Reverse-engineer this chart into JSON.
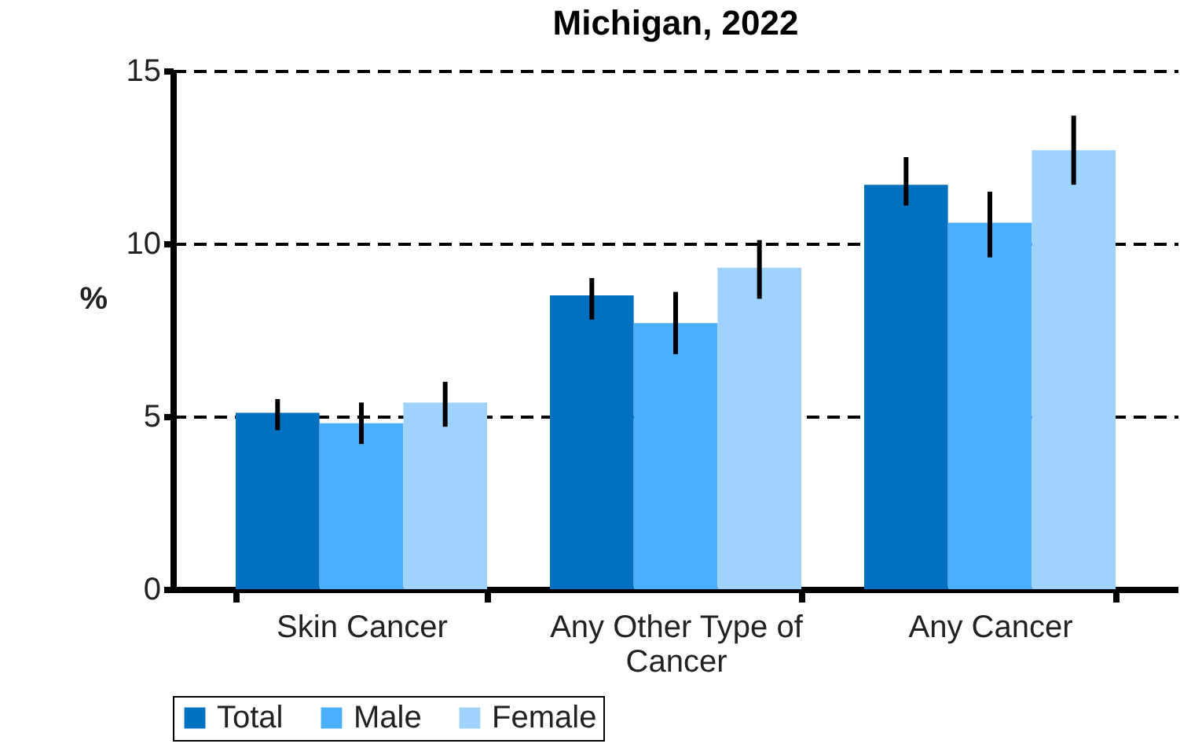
{
  "chart_data": {
    "type": "bar",
    "title": "Michigan, 2022",
    "ylabel": "%",
    "categories": [
      "Skin Cancer",
      "Any Other Type of Cancer",
      "Any Cancer"
    ],
    "series": [
      {
        "name": "Total",
        "color": "#0070c0",
        "values": [
          5.1,
          8.5,
          11.7
        ],
        "errors": [
          [
            4.6,
            5.5
          ],
          [
            7.8,
            9.0
          ],
          [
            11.1,
            12.5
          ]
        ]
      },
      {
        "name": "Male",
        "color": "#4aaffe",
        "values": [
          4.8,
          7.7,
          10.6
        ],
        "errors": [
          [
            4.2,
            5.4
          ],
          [
            6.8,
            8.6
          ],
          [
            9.6,
            11.5
          ]
        ]
      },
      {
        "name": "Female",
        "color": "#9fd3fe",
        "values": [
          5.4,
          9.3,
          12.7
        ],
        "errors": [
          [
            4.7,
            6.0
          ],
          [
            8.4,
            10.1
          ],
          [
            11.7,
            13.7
          ]
        ]
      }
    ],
    "ylim": [
      0,
      15
    ],
    "yticks": [
      0,
      5,
      10,
      15
    ],
    "grid": "y",
    "legend": "bottom"
  }
}
